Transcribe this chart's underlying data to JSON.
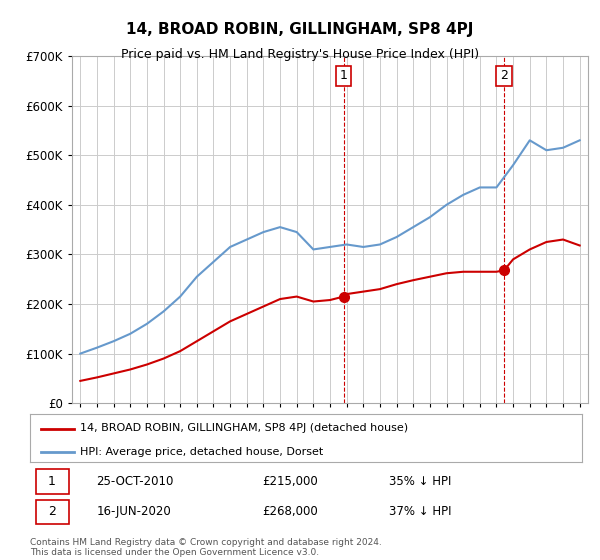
{
  "title": "14, BROAD ROBIN, GILLINGHAM, SP8 4PJ",
  "subtitle": "Price paid vs. HM Land Registry's House Price Index (HPI)",
  "legend_line1": "14, BROAD ROBIN, GILLINGHAM, SP8 4PJ (detached house)",
  "legend_line2": "HPI: Average price, detached house, Dorset",
  "footnote": "Contains HM Land Registry data © Crown copyright and database right 2024.\nThis data is licensed under the Open Government Licence v3.0.",
  "point1_label": "25-OCT-2010",
  "point1_price": "£215,000",
  "point1_pct": "35% ↓ HPI",
  "point2_label": "16-JUN-2020",
  "point2_price": "£268,000",
  "point2_pct": "37% ↓ HPI",
  "red_color": "#cc0000",
  "blue_color": "#6699cc",
  "marker_color": "#cc0000",
  "vline_color": "#cc0000",
  "grid_color": "#cccccc",
  "background_color": "#ffffff",
  "ylim": [
    0,
    700000
  ],
  "yticks": [
    0,
    100000,
    200000,
    300000,
    400000,
    500000,
    600000,
    700000
  ],
  "ytick_labels": [
    "£0",
    "£100K",
    "£200K",
    "£300K",
    "£400K",
    "£500K",
    "£600K",
    "£700K"
  ],
  "xmin": 1994.5,
  "xmax": 2025.5,
  "point1_x": 2010.82,
  "point2_x": 2020.46,
  "red_x": [
    1995,
    1996,
    1997,
    1998,
    1999,
    2000,
    2001,
    2002,
    2003,
    2004,
    2005,
    2006,
    2007,
    2008,
    2009,
    2010,
    2010.82,
    2011,
    2012,
    2013,
    2014,
    2015,
    2016,
    2017,
    2018,
    2019,
    2020,
    2020.46,
    2021,
    2022,
    2023,
    2024,
    2025
  ],
  "red_y": [
    45000,
    52000,
    60000,
    68000,
    78000,
    90000,
    105000,
    125000,
    145000,
    165000,
    180000,
    195000,
    210000,
    215000,
    205000,
    208000,
    215000,
    220000,
    225000,
    230000,
    240000,
    248000,
    255000,
    262000,
    265000,
    265000,
    265000,
    268000,
    290000,
    310000,
    325000,
    330000,
    318000
  ],
  "blue_x": [
    1995,
    1996,
    1997,
    1998,
    1999,
    2000,
    2001,
    2002,
    2003,
    2004,
    2005,
    2006,
    2007,
    2008,
    2009,
    2010,
    2011,
    2012,
    2013,
    2014,
    2015,
    2016,
    2017,
    2018,
    2019,
    2020,
    2021,
    2022,
    2023,
    2024,
    2025
  ],
  "blue_y": [
    100000,
    112000,
    125000,
    140000,
    160000,
    185000,
    215000,
    255000,
    285000,
    315000,
    330000,
    345000,
    355000,
    345000,
    310000,
    315000,
    320000,
    315000,
    320000,
    335000,
    355000,
    375000,
    400000,
    420000,
    435000,
    435000,
    480000,
    530000,
    510000,
    515000,
    530000
  ]
}
